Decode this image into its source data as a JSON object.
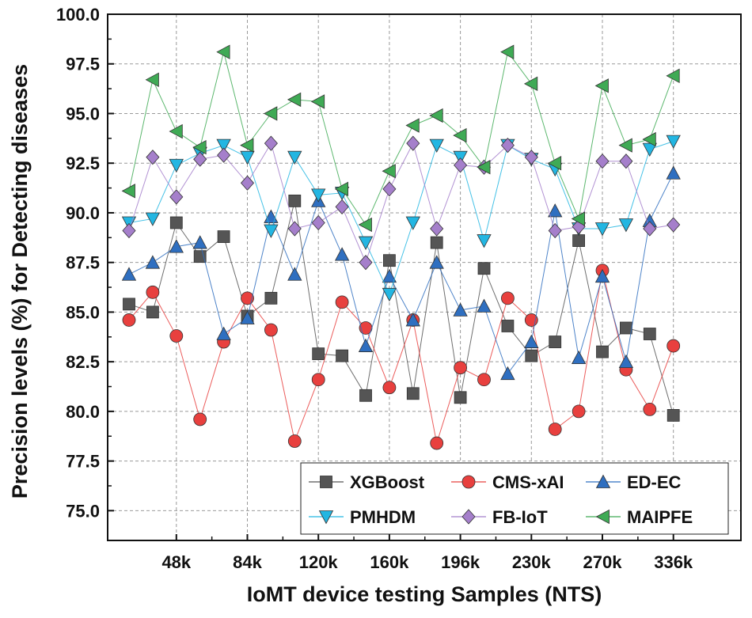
{
  "chart_data": {
    "type": "line",
    "title": "",
    "xlabel": "IoMT device testing Samples (NTS)",
    "ylabel": "Precision levels (%) for Detecting diseases",
    "ylim": [
      73.5,
      100.0
    ],
    "yticks": [
      75.0,
      77.5,
      80.0,
      82.5,
      85.0,
      87.5,
      90.0,
      92.5,
      95.0,
      97.5,
      100.0
    ],
    "ytick_labels": [
      "75.0",
      "77.5",
      "80.0",
      "82.5",
      "85.0",
      "87.5",
      "90.0",
      "92.5",
      "95.0",
      "97.5",
      "100.0"
    ],
    "xtick_labels": [
      "48k",
      "84k",
      "120k",
      "160k",
      "196k",
      "230k",
      "270k",
      "336k"
    ],
    "xtick_point_index": [
      2,
      5,
      8,
      11,
      14,
      17,
      20,
      23
    ],
    "n_points": 24,
    "grid": true,
    "legend": "bottom-right",
    "series": [
      {
        "name": "XGBoost",
        "marker": "square",
        "color": "#555555",
        "values": [
          85.4,
          85.0,
          89.5,
          87.8,
          88.8,
          84.8,
          85.7,
          90.6,
          82.9,
          82.8,
          80.8,
          87.6,
          80.9,
          88.5,
          80.7,
          87.2,
          84.3,
          82.8,
          83.5,
          88.6,
          83.0,
          84.2,
          83.9,
          79.8
        ]
      },
      {
        "name": "CMS-xAI",
        "marker": "circle",
        "color": "#e8403e",
        "values": [
          84.6,
          86.0,
          83.8,
          79.6,
          83.5,
          85.7,
          84.1,
          78.5,
          81.6,
          85.5,
          84.2,
          81.2,
          84.6,
          78.4,
          82.2,
          81.6,
          85.7,
          84.6,
          79.1,
          80.0,
          87.1,
          82.1,
          80.1,
          83.3
        ]
      },
      {
        "name": "ED-EC",
        "marker": "triangle-up",
        "color": "#2f6fc0",
        "values": [
          86.9,
          87.5,
          88.3,
          88.5,
          83.9,
          84.7,
          89.8,
          86.9,
          90.6,
          87.9,
          83.3,
          86.8,
          84.6,
          87.5,
          85.1,
          85.3,
          81.9,
          83.5,
          90.1,
          82.7,
          86.8,
          82.5,
          89.6,
          92.0
        ]
      },
      {
        "name": "PMHDM",
        "marker": "triangle-down",
        "color": "#23b6e2",
        "values": [
          89.5,
          89.7,
          92.4,
          93.0,
          93.4,
          92.8,
          89.1,
          92.8,
          90.9,
          91.0,
          88.5,
          85.9,
          89.5,
          93.4,
          92.8,
          88.6,
          93.4,
          92.7,
          92.2,
          89.2,
          89.2,
          89.4,
          93.2,
          93.6
        ]
      },
      {
        "name": "FB-IoT",
        "marker": "diamond",
        "color": "#a57fcb",
        "values": [
          89.1,
          92.8,
          90.8,
          92.7,
          92.9,
          91.5,
          93.5,
          89.2,
          89.5,
          90.3,
          87.5,
          91.2,
          93.5,
          89.2,
          92.4,
          92.3,
          93.4,
          92.8,
          89.1,
          89.3,
          92.6,
          92.6,
          89.2,
          89.4
        ]
      },
      {
        "name": "MAIPFE",
        "marker": "triangle-left",
        "color": "#3faa55",
        "values": [
          91.1,
          96.7,
          94.1,
          93.3,
          98.1,
          93.4,
          95.0,
          95.7,
          95.6,
          91.2,
          89.4,
          92.1,
          94.4,
          94.9,
          93.9,
          92.3,
          98.1,
          96.5,
          92.5,
          89.7,
          96.4,
          93.4,
          93.7,
          96.9
        ]
      }
    ]
  }
}
